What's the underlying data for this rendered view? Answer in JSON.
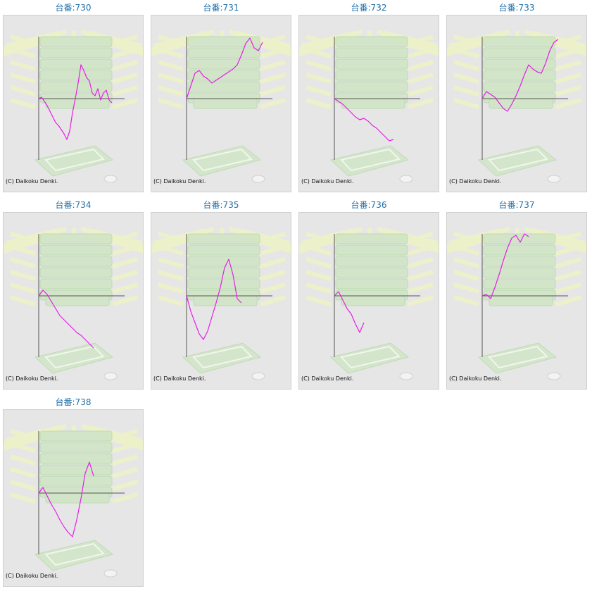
{
  "colors": {
    "line": "#e61ee6",
    "axis": "#555555",
    "panel_bg": "#e6e6e6",
    "title": "#1f6fa8",
    "decor_green": "#cfe5c4",
    "decor_rays": "#eef3c8"
  },
  "copyright": "(C) Daikoku Denki.",
  "chart_data": [
    {
      "type": "line",
      "title": "台番:730",
      "x": [
        0,
        4,
        8,
        12,
        16,
        20,
        24,
        28,
        32,
        36,
        40,
        44,
        48,
        52,
        56,
        60,
        64,
        68,
        72,
        76,
        80,
        84,
        88,
        92,
        96,
        100,
        104
      ],
      "y": [
        0,
        2,
        -4,
        -10,
        -18,
        -26,
        -34,
        -38,
        -44,
        -50,
        -58,
        -46,
        -20,
        0,
        22,
        48,
        40,
        30,
        25,
        8,
        4,
        14,
        -2,
        8,
        12,
        -2,
        -6
      ]
    },
    {
      "type": "line",
      "title": "台番:731",
      "x": [
        0,
        6,
        12,
        18,
        24,
        30,
        36,
        42,
        48,
        54,
        60,
        66,
        72,
        78,
        84,
        90,
        96,
        102,
        108
      ],
      "y": [
        0,
        18,
        36,
        40,
        32,
        28,
        22,
        26,
        30,
        34,
        38,
        42,
        48,
        62,
        78,
        86,
        72,
        68,
        80
      ]
    },
    {
      "type": "line",
      "title": "台番:732",
      "x": [
        0,
        6,
        12,
        18,
        24,
        30,
        36,
        42,
        48,
        54,
        60,
        66,
        72,
        78,
        84
      ],
      "y": [
        0,
        -4,
        -8,
        -14,
        -20,
        -26,
        -30,
        -28,
        -32,
        -38,
        -42,
        -48,
        -54,
        -60,
        -58
      ]
    },
    {
      "type": "line",
      "title": "台番:733",
      "x": [
        0,
        6,
        12,
        18,
        24,
        30,
        36,
        42,
        48,
        54,
        60,
        66,
        72,
        78,
        84,
        90,
        96,
        102,
        108
      ],
      "y": [
        0,
        10,
        6,
        2,
        -6,
        -14,
        -18,
        -8,
        4,
        18,
        34,
        48,
        42,
        38,
        36,
        50,
        68,
        80,
        84
      ]
    },
    {
      "type": "line",
      "title": "台番:734",
      "x": [
        0,
        6,
        12,
        18,
        24,
        30,
        36,
        42,
        48,
        54,
        60,
        66,
        72,
        78
      ],
      "y": [
        0,
        8,
        2,
        -8,
        -18,
        -28,
        -34,
        -40,
        -46,
        -52,
        -56,
        -62,
        -68,
        -74
      ]
    },
    {
      "type": "line",
      "title": "台番:735",
      "x": [
        0,
        6,
        12,
        18,
        24,
        30,
        36,
        42,
        48,
        54,
        60,
        66,
        72,
        78
      ],
      "y": [
        0,
        -22,
        -38,
        -54,
        -62,
        -50,
        -30,
        -10,
        12,
        40,
        52,
        30,
        -4,
        -10
      ]
    },
    {
      "type": "line",
      "title": "台番:736",
      "x": [
        0,
        6,
        12,
        18,
        24,
        30,
        36,
        42
      ],
      "y": [
        0,
        6,
        -6,
        -18,
        -26,
        -40,
        -52,
        -38
      ]
    },
    {
      "type": "line",
      "title": "台番:737",
      "x": [
        0,
        6,
        12,
        18,
        24,
        30,
        36,
        42,
        48,
        54,
        60,
        66
      ],
      "y": [
        0,
        2,
        -4,
        12,
        30,
        50,
        68,
        82,
        86,
        76,
        88,
        84
      ]
    },
    {
      "type": "line",
      "title": "台番:738",
      "x": [
        0,
        6,
        12,
        18,
        24,
        30,
        36,
        42,
        48,
        54,
        60,
        66,
        72,
        78
      ],
      "y": [
        0,
        8,
        -4,
        -16,
        -26,
        -38,
        -48,
        -56,
        -62,
        -38,
        -8,
        28,
        44,
        24
      ]
    }
  ]
}
